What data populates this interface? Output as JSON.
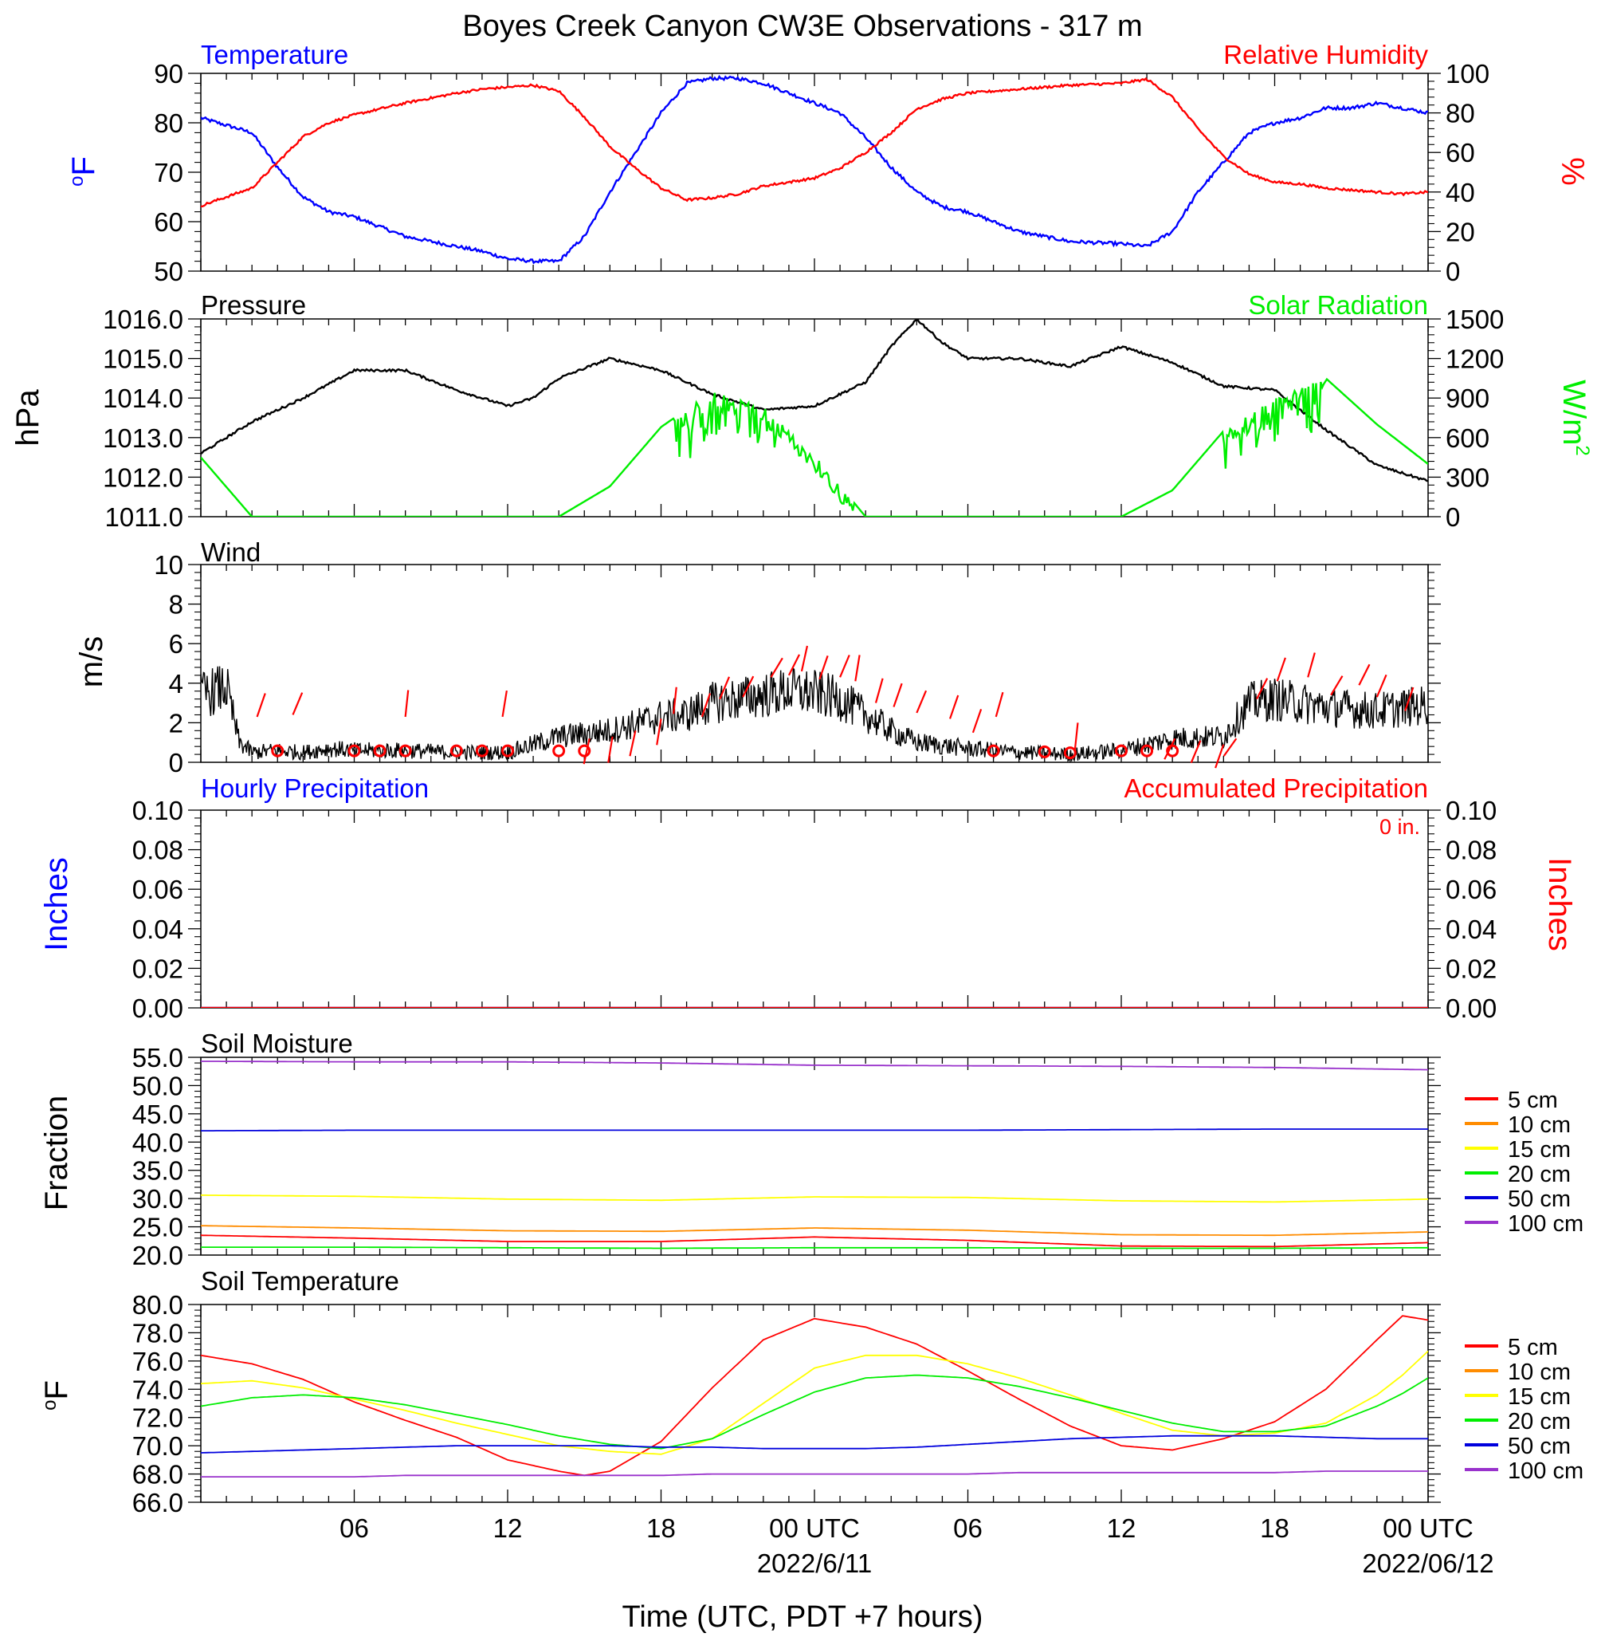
{
  "title": "Boyes Creek Canyon CW3E Observations - 317 m",
  "x_axis": {
    "label": "Time (UTC, PDT +7 hours)",
    "ticks": [
      "06",
      "12",
      "18",
      "00 UTC",
      "06",
      "12",
      "18",
      "00 UTC"
    ],
    "dates": [
      "2022/6/11",
      "2022/06/12"
    ]
  },
  "colors": {
    "temperature": "#0000ff",
    "humidity": "#ff0000",
    "pressure": "#000000",
    "solar": "#00ee00",
    "wind": "#000000",
    "barb": "#ff0000",
    "hourly_precip": "#0000ff",
    "accum_precip": "#ff0000",
    "5 cm": "#ff0000",
    "10 cm": "#ff8c00",
    "15 cm": "#ffff00",
    "20 cm": "#00ee00",
    "50 cm": "#0000dd",
    "100 cm": "#9932cc"
  },
  "chart_data": [
    {
      "type": "line",
      "panel": "temperature_humidity",
      "left_title": "Temperature",
      "right_title": "Relative Humidity",
      "ylabel_left": "oF",
      "ylabel_right": "%",
      "ylim_left": [
        50,
        90
      ],
      "ylim_right": [
        0,
        100
      ],
      "yticks_left": [
        "50",
        "60",
        "70",
        "80",
        "90"
      ],
      "yticks_right": [
        "0",
        "20",
        "40",
        "60",
        "80",
        "100"
      ],
      "x_hours": [
        0,
        2,
        3,
        4,
        5,
        6,
        8,
        10,
        11,
        12,
        13,
        14,
        15,
        16,
        17,
        18,
        19,
        20,
        21,
        22,
        23,
        24,
        25,
        26,
        27,
        28,
        29,
        30,
        32,
        34,
        36,
        37,
        38,
        39,
        40,
        41,
        42,
        43,
        44,
        45,
        46,
        47,
        48
      ],
      "series": [
        {
          "name": "Temperature",
          "axis": "left",
          "values": [
            81,
            78,
            71,
            65,
            62,
            61,
            57,
            55,
            54,
            52.5,
            52,
            52,
            57,
            66,
            74,
            82,
            88,
            89,
            89,
            88,
            86,
            84,
            82,
            77,
            71,
            66,
            63,
            62,
            58,
            56,
            55.5,
            55,
            58,
            66,
            72,
            78,
            80,
            81,
            83,
            83,
            84,
            83,
            82
          ]
        },
        {
          "name": "Relative Humidity",
          "axis": "right",
          "values": [
            33,
            42,
            55,
            68,
            75,
            79,
            85,
            90,
            92,
            93,
            94,
            91,
            78,
            63,
            52,
            42,
            36,
            37,
            39,
            43,
            45,
            47,
            52,
            60,
            70,
            82,
            87,
            90,
            92,
            94,
            95,
            97,
            88,
            72,
            58,
            49,
            45,
            44,
            42,
            41,
            40,
            39,
            40
          ]
        }
      ]
    },
    {
      "type": "line",
      "panel": "pressure_solar",
      "left_title": "Pressure",
      "right_title": "Solar Radiation",
      "ylabel_left": "hPa",
      "ylabel_right": "W/m2",
      "ylim_left": [
        1011.0,
        1016.0
      ],
      "ylim_right": [
        0,
        1500
      ],
      "yticks_left": [
        "1011.0",
        "1012.0",
        "1013.0",
        "1014.0",
        "1015.0",
        "1016.0"
      ],
      "yticks_right": [
        "0",
        "300",
        "600",
        "900",
        "1200",
        "1500"
      ],
      "x_hours": [
        0,
        2,
        4,
        6,
        8,
        10,
        12,
        13,
        14,
        16,
        18,
        20,
        22,
        24,
        26,
        27,
        28,
        29,
        30,
        32,
        34,
        36,
        38,
        40,
        42,
        44,
        46,
        48
      ],
      "series": [
        {
          "name": "Pressure",
          "axis": "left",
          "values": [
            1012.6,
            1013.4,
            1014.0,
            1014.7,
            1014.7,
            1014.2,
            1013.8,
            1014.0,
            1014.5,
            1015.0,
            1014.7,
            1014.1,
            1013.7,
            1013.8,
            1014.4,
            1015.3,
            1016.0,
            1015.4,
            1015.0,
            1015.0,
            1014.8,
            1015.3,
            1014.9,
            1014.3,
            1014.2,
            1013.2,
            1012.3,
            1011.9
          ]
        },
        {
          "name": "Solar Radiation",
          "axis": "right",
          "values": [
            450,
            0,
            0,
            0,
            0,
            0,
            0,
            0,
            0,
            230,
            680,
            950,
            840,
            470,
            0,
            0,
            0,
            0,
            0,
            0,
            0,
            0,
            200,
            650,
            900,
            1050,
            700,
            400
          ]
        }
      ]
    },
    {
      "type": "line",
      "panel": "wind",
      "left_title": "Wind",
      "ylabel_left": "m/s",
      "ylim_left": [
        0,
        10
      ],
      "yticks_left": [
        "0",
        "2",
        "4",
        "6",
        "8",
        "10"
      ],
      "x_hours": [
        0,
        1,
        1.5,
        2,
        3,
        4,
        5,
        6,
        8,
        10,
        12,
        14,
        16,
        18,
        19,
        20,
        22,
        23,
        24,
        25,
        26,
        27,
        28,
        30,
        32,
        34,
        36,
        38,
        40,
        41,
        42,
        44,
        46,
        48
      ],
      "series": [
        {
          "name": "Wind Speed",
          "axis": "left",
          "values": [
            3.4,
            3.8,
            1.0,
            0.5,
            0.6,
            0.5,
            0.7,
            0.6,
            0.6,
            0.5,
            0.5,
            1.3,
            1.6,
            2.3,
            2.4,
            3.0,
            3.4,
            3.6,
            3.5,
            3.2,
            2.4,
            1.6,
            1.0,
            0.7,
            0.5,
            0.4,
            0.6,
            1.2,
            1.3,
            3.0,
            3.2,
            2.8,
            2.6,
            2.9
          ]
        }
      ]
    },
    {
      "type": "line",
      "panel": "precipitation",
      "left_title": "Hourly Precipitation",
      "right_title": "Accumulated Precipitation",
      "annotation": "0 in.",
      "ylabel_left": "Inches",
      "ylabel_right": "Inches",
      "ylim_left": [
        0,
        0.1
      ],
      "ylim_right": [
        0,
        0.1
      ],
      "yticks_left": [
        "0.00",
        "0.02",
        "0.04",
        "0.06",
        "0.08",
        "0.10"
      ],
      "yticks_right": [
        "0.00",
        "0.02",
        "0.04",
        "0.06",
        "0.08",
        "0.10"
      ],
      "x_hours": [
        0,
        48
      ],
      "series": [
        {
          "name": "Hourly Precipitation",
          "axis": "left",
          "values": [
            0,
            0
          ]
        },
        {
          "name": "Accumulated Precipitation",
          "axis": "right",
          "values": [
            0,
            0
          ]
        }
      ]
    },
    {
      "type": "line",
      "panel": "soil_moisture",
      "left_title": "Soil Moisture",
      "ylabel_left": "Fraction",
      "ylim_left": [
        20.0,
        55.0
      ],
      "yticks_left": [
        "20.0",
        "25.0",
        "30.0",
        "35.0",
        "40.0",
        "45.0",
        "50.0",
        "55.0"
      ],
      "legend": [
        "5 cm",
        "10 cm",
        "15 cm",
        "20 cm",
        "50 cm",
        "100 cm"
      ],
      "x_hours": [
        0,
        6,
        12,
        18,
        24,
        30,
        36,
        42,
        48
      ],
      "series": [
        {
          "name": "5 cm",
          "axis": "left",
          "values": [
            23.5,
            23.0,
            22.4,
            22.4,
            23.2,
            22.6,
            21.6,
            21.5,
            22.2
          ]
        },
        {
          "name": "10 cm",
          "axis": "left",
          "values": [
            25.2,
            24.8,
            24.3,
            24.2,
            24.8,
            24.4,
            23.6,
            23.5,
            24.1
          ]
        },
        {
          "name": "15 cm",
          "axis": "left",
          "values": [
            30.6,
            30.4,
            29.9,
            29.7,
            30.3,
            30.2,
            29.6,
            29.4,
            29.9
          ]
        },
        {
          "name": "20 cm",
          "axis": "left",
          "values": [
            21.4,
            21.4,
            21.3,
            21.2,
            21.3,
            21.3,
            21.2,
            21.2,
            21.3
          ]
        },
        {
          "name": "50 cm",
          "axis": "left",
          "values": [
            42.0,
            42.1,
            42.1,
            42.1,
            42.1,
            42.1,
            42.2,
            42.3,
            42.3
          ]
        },
        {
          "name": "100 cm",
          "axis": "left",
          "values": [
            54.3,
            54.2,
            54.2,
            54.0,
            53.6,
            53.5,
            53.4,
            53.2,
            52.8
          ]
        }
      ]
    },
    {
      "type": "line",
      "panel": "soil_temperature",
      "left_title": "Soil Temperature",
      "ylabel_left": "oF",
      "ylim_left": [
        66.0,
        80.0
      ],
      "yticks_left": [
        "66.0",
        "68.0",
        "70.0",
        "72.0",
        "74.0",
        "76.0",
        "78.0",
        "80.0"
      ],
      "legend": [
        "5 cm",
        "10 cm",
        "15 cm",
        "20 cm",
        "50 cm",
        "100 cm"
      ],
      "x_hours": [
        0,
        2,
        4,
        6,
        8,
        10,
        12,
        14,
        15,
        16,
        18,
        20,
        22,
        24,
        26,
        28,
        30,
        32,
        34,
        36,
        38,
        40,
        42,
        44,
        46,
        47,
        48
      ],
      "series": [
        {
          "name": "5 cm",
          "axis": "left",
          "values": [
            76.4,
            75.8,
            74.7,
            73.1,
            71.8,
            70.6,
            69.0,
            68.2,
            67.9,
            68.2,
            70.3,
            74.1,
            77.5,
            79.0,
            78.4,
            77.2,
            75.3,
            73.3,
            71.4,
            70.0,
            69.7,
            70.5,
            71.7,
            74.0,
            77.5,
            79.2,
            78.9
          ]
        },
        {
          "name": "15 cm",
          "axis": "left",
          "values": [
            74.4,
            74.6,
            74.1,
            73.3,
            72.5,
            71.6,
            70.8,
            70.0,
            69.8,
            69.6,
            69.4,
            70.5,
            73.0,
            75.5,
            76.4,
            76.4,
            75.8,
            74.8,
            73.6,
            72.3,
            71.1,
            70.7,
            70.9,
            71.6,
            73.6,
            75.0,
            76.7
          ]
        },
        {
          "name": "20 cm",
          "axis": "left",
          "values": [
            72.8,
            73.4,
            73.6,
            73.4,
            72.9,
            72.2,
            71.5,
            70.7,
            70.4,
            70.1,
            69.8,
            70.5,
            72.2,
            73.8,
            74.8,
            75.0,
            74.8,
            74.2,
            73.4,
            72.5,
            71.6,
            71.0,
            71.0,
            71.4,
            72.8,
            73.7,
            74.8
          ]
        },
        {
          "name": "50 cm",
          "axis": "left",
          "values": [
            69.5,
            69.6,
            69.7,
            69.8,
            69.9,
            70.0,
            70.0,
            70.0,
            70.0,
            70.0,
            69.9,
            69.9,
            69.8,
            69.8,
            69.8,
            69.9,
            70.1,
            70.3,
            70.5,
            70.6,
            70.7,
            70.7,
            70.7,
            70.6,
            70.5,
            70.5,
            70.5
          ]
        },
        {
          "name": "100 cm",
          "axis": "left",
          "values": [
            67.8,
            67.8,
            67.8,
            67.8,
            67.9,
            67.9,
            67.9,
            67.9,
            67.9,
            67.9,
            67.9,
            68.0,
            68.0,
            68.0,
            68.0,
            68.0,
            68.0,
            68.1,
            68.1,
            68.1,
            68.1,
            68.1,
            68.1,
            68.2,
            68.2,
            68.2,
            68.2
          ]
        }
      ]
    }
  ]
}
